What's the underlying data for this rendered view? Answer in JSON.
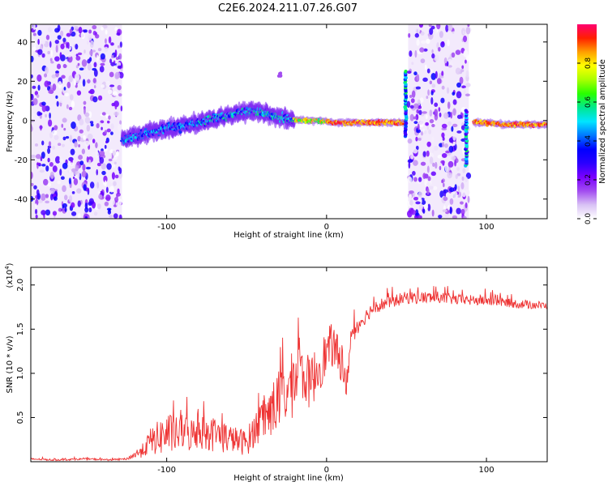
{
  "title": "C2E6.2024.211.07.26.G07",
  "chart_data": [
    {
      "type": "heatmap",
      "xlabel": "Height of straight line (km)",
      "ylabel": "Frequency (Hz)",
      "xlim": [
        -185,
        138
      ],
      "ylim": [
        -50,
        49
      ],
      "xticks": [
        -100,
        0,
        100
      ],
      "yticks": [
        -40,
        -20,
        0,
        20,
        40
      ],
      "colorbar": {
        "label": "Normalized spectral amplitude",
        "range": [
          0,
          1
        ],
        "ticks": [
          "0.0",
          "0.2",
          "0.4",
          "0.6",
          "0.8"
        ],
        "colors": [
          "#ffffff",
          "#d9c2f5",
          "#a24cf0",
          "#7a00ff",
          "#2a00ff",
          "#0000ff",
          "#0078ff",
          "#00e5ff",
          "#00e890",
          "#28ff00",
          "#a8ff00",
          "#ffff00",
          "#ffa000",
          "#ff2000",
          "#ff0070"
        ]
      },
      "features": [
        {
          "kind": "noise_band",
          "x_range": [
            -185,
            -128
          ],
          "f_range": [
            -50,
            49
          ]
        },
        {
          "kind": "trend",
          "x": [
            -128,
            -115,
            -100,
            -85,
            -70,
            -55,
            -45,
            -35,
            -25,
            -15,
            -5,
            5,
            20,
            40,
            48
          ],
          "f": [
            -10,
            -7,
            -4,
            -2,
            1,
            4,
            5,
            3,
            1,
            0,
            0,
            -1,
            -1,
            -1,
            -1
          ]
        },
        {
          "kind": "spike",
          "x": 49.5,
          "f_range": [
            -8,
            25
          ]
        },
        {
          "kind": "noise_band",
          "x_range": [
            51,
            89
          ],
          "f_range": [
            -50,
            49
          ]
        },
        {
          "kind": "spike",
          "x": 87.5,
          "f_range": [
            -23,
            5
          ]
        },
        {
          "kind": "trend",
          "x": [
            92,
            100,
            110,
            120,
            130,
            138
          ],
          "f": [
            -1,
            -1,
            -2,
            -2,
            -2,
            -2
          ]
        },
        {
          "kind": "blob",
          "x": -29,
          "f": 23
        }
      ]
    },
    {
      "type": "line",
      "xlabel": "Height of straight line (km)",
      "ylabel": "SNR (10 * v/v)",
      "y_multiplier": "(x10",
      "y_multiplier_exp": "4",
      "y_multiplier_close": ")",
      "xlim": [
        -185,
        138
      ],
      "ylim": [
        0,
        2.2
      ],
      "xticks": [
        -100,
        0,
        100
      ],
      "yticks": [
        "0.5",
        "1.0",
        "1.5",
        "2.0"
      ],
      "color": "#ee3333",
      "series": [
        {
          "x": [
            -185,
            -170,
            -150,
            -135,
            -125,
            -115,
            -110,
            -105,
            -100,
            -95,
            -90,
            -85,
            -80,
            -75,
            -70,
            -65,
            -60,
            -55,
            -50,
            -45,
            -40,
            -35,
            -30,
            -25,
            -20,
            -18,
            -15,
            -10,
            -5,
            0,
            3,
            5,
            8,
            10,
            12,
            15,
            20,
            25,
            30,
            40,
            50,
            60,
            70,
            80,
            90,
            100,
            110,
            120,
            130,
            138
          ],
          "y": [
            0.03,
            0.02,
            0.03,
            0.02,
            0.03,
            0.12,
            0.22,
            0.25,
            0.3,
            0.28,
            0.32,
            0.28,
            0.33,
            0.3,
            0.29,
            0.27,
            0.25,
            0.22,
            0.2,
            0.35,
            0.45,
            0.55,
            0.65,
            0.75,
            0.85,
            1.0,
            0.95,
            0.85,
            1.05,
            1.2,
            1.3,
            1.25,
            1.1,
            1.2,
            0.7,
            1.4,
            1.55,
            1.65,
            1.75,
            1.8,
            1.85,
            1.85,
            1.85,
            1.83,
            1.82,
            1.82,
            1.8,
            1.78,
            1.77,
            1.76
          ],
          "noise": [
            0.01,
            0.01,
            0.01,
            0.01,
            0.01,
            0.08,
            0.15,
            0.2,
            0.25,
            0.2,
            0.2,
            0.2,
            0.2,
            0.2,
            0.2,
            0.2,
            0.15,
            0.15,
            0.15,
            0.2,
            0.25,
            0.3,
            0.35,
            0.35,
            0.4,
            0.4,
            0.3,
            0.3,
            0.3,
            0.25,
            0.25,
            0.25,
            0.25,
            0.25,
            0.2,
            0.12,
            0.1,
            0.08,
            0.08,
            0.07,
            0.07,
            0.07,
            0.07,
            0.06,
            0.06,
            0.06,
            0.05,
            0.05,
            0.05,
            0.04
          ]
        }
      ]
    }
  ]
}
